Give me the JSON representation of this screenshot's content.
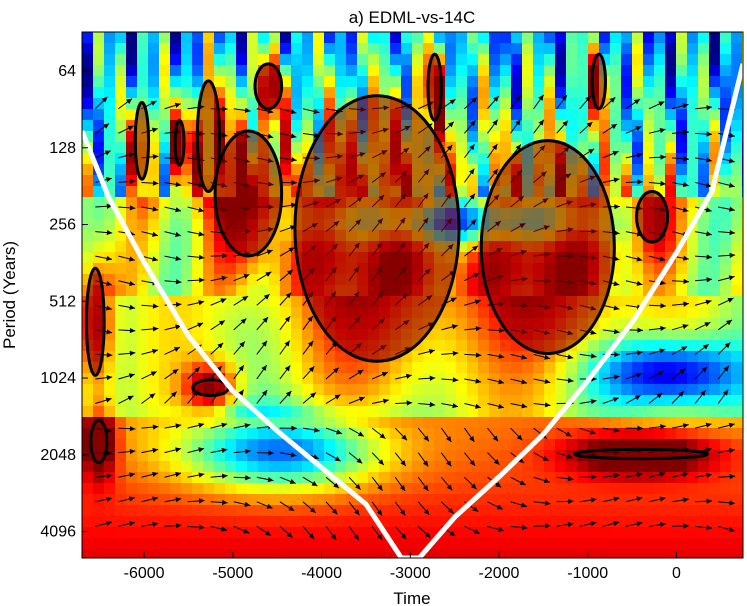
{
  "chart_data": {
    "type": "heatmap",
    "title": "a) EDML-vs-14C",
    "xlabel": "Time",
    "ylabel": "Period (Years)",
    "xlim": [
      -6700,
      750
    ],
    "x_ticks": [
      -6000,
      -5000,
      -4000,
      -3000,
      -2000,
      -1000,
      0
    ],
    "x_tick_labels": [
      "-6000",
      "-5000",
      "-4000",
      "-3000",
      "-2000",
      "-1000",
      "0"
    ],
    "y_scale": "log2",
    "ylim": [
      45,
      5200
    ],
    "y_ticks": [
      64,
      128,
      256,
      512,
      1024,
      2048,
      4096
    ],
    "y_tick_labels": [
      "64",
      "128",
      "256",
      "512",
      "1024",
      "2048",
      "4096"
    ],
    "colormap": "jet",
    "colors": {
      "cone_of_influence": "#ffffff",
      "significance_contour": "#000000",
      "arrows": "#000000",
      "high_power": "#8b0000",
      "low_power": "#00008f"
    },
    "cone_of_influence": {
      "x": [
        -6700,
        -6400,
        -6000,
        -5500,
        -5000,
        -4500,
        -4000,
        -3500,
        -3100,
        -2900,
        -2500,
        -2000,
        -1500,
        -1000,
        -500,
        0,
        400,
        750
      ],
      "period": [
        110,
        200,
        360,
        700,
        1150,
        1650,
        2300,
        3200,
        5200,
        5200,
        3600,
        2500,
        1700,
        1050,
        620,
        330,
        190,
        60
      ]
    },
    "significant_regions": [
      {
        "x": [
          -6650,
          -6450
        ],
        "period": [
          380,
          1000
        ]
      },
      {
        "x": [
          -6600,
          -6420
        ],
        "period": [
          1500,
          2200
        ]
      },
      {
        "x": [
          -6100,
          -5950
        ],
        "period": [
          85,
          170
        ]
      },
      {
        "x": [
          -5650,
          -5550
        ],
        "period": [
          100,
          150
        ]
      },
      {
        "x": [
          -5400,
          -5150
        ],
        "period": [
          70,
          190
        ]
      },
      {
        "x": [
          -5450,
          -5050
        ],
        "period": [
          1040,
          1200
        ]
      },
      {
        "x": [
          -5200,
          -4450
        ],
        "period": [
          110,
          340
        ]
      },
      {
        "x": [
          -4750,
          -4450
        ],
        "period": [
          60,
          90
        ]
      },
      {
        "x": [
          -4300,
          -2450
        ],
        "period": [
          80,
          880
        ]
      },
      {
        "x": [
          -2800,
          -2650
        ],
        "period": [
          55,
          100
        ]
      },
      {
        "x": [
          -2200,
          -700
        ],
        "period": [
          120,
          820
        ]
      },
      {
        "x": [
          -950,
          -800
        ],
        "period": [
          55,
          90
        ]
      },
      {
        "x": [
          -450,
          -100
        ],
        "period": [
          190,
          300
        ]
      },
      {
        "x": [
          -1150,
          350
        ],
        "period": [
          1950,
          2120
        ]
      }
    ],
    "low_power_bands": [
      {
        "x": [
          -5600,
          -3300
        ],
        "period": [
          1550,
          2600
        ]
      },
      {
        "x": [
          -900,
          750
        ],
        "period": [
          780,
          1250
        ]
      },
      {
        "x": [
          -4200,
          -600
        ],
        "period": [
          220,
          280
        ]
      }
    ]
  }
}
